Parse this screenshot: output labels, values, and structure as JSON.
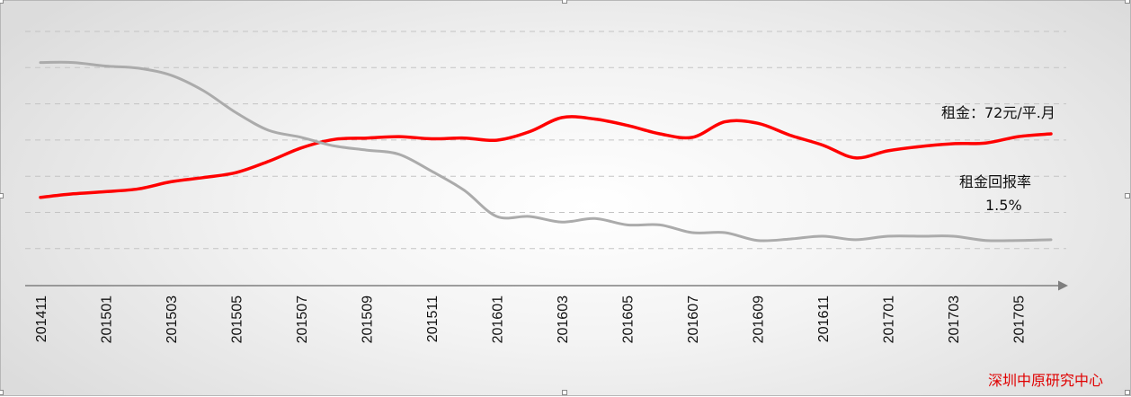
{
  "chart_data": {
    "type": "line",
    "x": [
      "201411",
      "201412",
      "201501",
      "201502",
      "201503",
      "201504",
      "201505",
      "201506",
      "201507",
      "201508",
      "201509",
      "201510",
      "201511",
      "201512",
      "201601",
      "201602",
      "201603",
      "201604",
      "201605",
      "201606",
      "201607",
      "201608",
      "201609",
      "201610",
      "201611",
      "201612",
      "201701",
      "201702",
      "201703",
      "201704",
      "201705",
      "201706"
    ],
    "x_tick_labels": [
      "201411",
      "201501",
      "201503",
      "201505",
      "201507",
      "201509",
      "201511",
      "201601",
      "201603",
      "201605",
      "201607",
      "201609",
      "201611",
      "201701",
      "201703",
      "201705"
    ],
    "series": [
      {
        "name": "",
        "color": "#ff0000",
        "values": [
          60.5,
          61.0,
          61.3,
          61.7,
          62.7,
          63.3,
          64.0,
          65.6,
          67.5,
          68.7,
          68.9,
          69.1,
          68.8,
          68.9,
          68.6,
          69.8,
          71.8,
          71.6,
          70.7,
          69.5,
          69.0,
          71.2,
          71.0,
          69.3,
          67.9,
          66.1,
          67.1,
          67.7,
          68.1,
          68.2,
          69.1,
          69.5
        ]
      },
      {
        "name": "",
        "color": "#ababab",
        "values": [
          79.6,
          79.6,
          79.1,
          78.8,
          77.8,
          75.6,
          72.5,
          70.0,
          69.0,
          67.8,
          67.2,
          66.6,
          64.2,
          61.5,
          57.8,
          57.8,
          57.0,
          57.5,
          56.6,
          56.6,
          55.5,
          55.5,
          54.4,
          54.6,
          55.0,
          54.5,
          55.0,
          55.0,
          55.0,
          54.4,
          54.4,
          54.5
        ]
      }
    ],
    "ylim": [
      48,
      84
    ],
    "grid": true,
    "grid_lines": 7,
    "annotations": {
      "rent_label": "租金：72元/平.月",
      "yield_label": "租金回报率",
      "yield_value": "1.5%"
    },
    "source": "深圳中原研究中心"
  }
}
